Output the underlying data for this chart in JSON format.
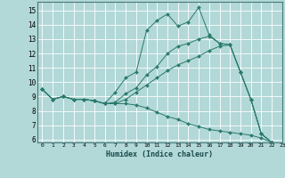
{
  "xlabel": "Humidex (Indice chaleur)",
  "background_color": "#b2d8d8",
  "grid_color": "#ffffff",
  "line_color": "#2a7a6a",
  "xlim": [
    -0.5,
    23
  ],
  "ylim": [
    5.8,
    15.6
  ],
  "yticks": [
    6,
    7,
    8,
    9,
    10,
    11,
    12,
    13,
    14,
    15
  ],
  "xticks": [
    0,
    1,
    2,
    3,
    4,
    5,
    6,
    7,
    8,
    9,
    10,
    11,
    12,
    13,
    14,
    15,
    16,
    17,
    18,
    19,
    20,
    21,
    22,
    23
  ],
  "lines": [
    {
      "x": [
        0,
        1,
        2,
        3,
        4,
        5,
        6,
        7,
        8,
        9,
        10,
        11,
        12,
        13,
        14,
        15,
        16,
        17,
        18,
        19,
        20,
        21,
        22
      ],
      "y": [
        9.5,
        8.8,
        9.0,
        8.8,
        8.8,
        8.7,
        8.5,
        9.3,
        10.3,
        10.7,
        13.6,
        14.3,
        14.75,
        13.9,
        14.2,
        15.2,
        13.3,
        12.7,
        12.6,
        10.7,
        8.8,
        6.4,
        5.8
      ]
    },
    {
      "x": [
        0,
        1,
        2,
        3,
        4,
        5,
        6,
        7,
        8,
        9,
        10,
        11,
        12,
        13,
        14,
        15,
        16,
        17,
        18,
        19,
        20,
        21,
        22
      ],
      "y": [
        9.5,
        8.8,
        9.0,
        8.8,
        8.8,
        8.7,
        8.5,
        8.6,
        9.2,
        9.6,
        10.5,
        11.1,
        12.0,
        12.5,
        12.7,
        13.0,
        13.2,
        12.7,
        12.6,
        10.7,
        8.8,
        6.4,
        5.8
      ]
    },
    {
      "x": [
        0,
        1,
        2,
        3,
        4,
        5,
        6,
        7,
        8,
        9,
        10,
        11,
        12,
        13,
        14,
        15,
        16,
        17,
        18,
        19,
        20,
        21,
        22
      ],
      "y": [
        9.5,
        8.8,
        9.0,
        8.8,
        8.8,
        8.7,
        8.5,
        8.5,
        8.8,
        9.3,
        9.8,
        10.3,
        10.8,
        11.2,
        11.5,
        11.8,
        12.2,
        12.5,
        12.6,
        10.7,
        8.8,
        6.4,
        5.8
      ]
    },
    {
      "x": [
        0,
        1,
        2,
        3,
        4,
        5,
        6,
        7,
        8,
        9,
        10,
        11,
        12,
        13,
        14,
        15,
        16,
        17,
        18,
        19,
        20,
        21,
        22
      ],
      "y": [
        9.5,
        8.8,
        9.0,
        8.8,
        8.8,
        8.7,
        8.5,
        8.5,
        8.5,
        8.4,
        8.2,
        7.9,
        7.6,
        7.4,
        7.1,
        6.9,
        6.7,
        6.6,
        6.5,
        6.4,
        6.3,
        6.1,
        5.8
      ]
    }
  ]
}
